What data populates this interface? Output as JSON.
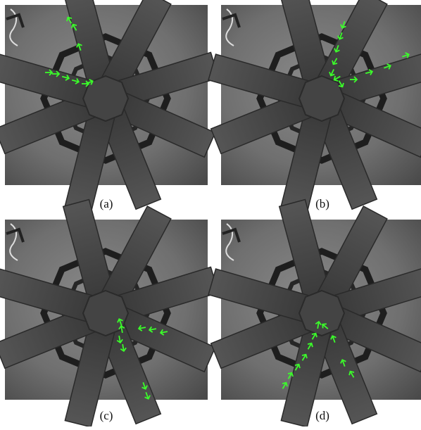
{
  "figure": {
    "captions": [
      "(a)",
      "(b)",
      "(c)",
      "(d)"
    ]
  }
}
